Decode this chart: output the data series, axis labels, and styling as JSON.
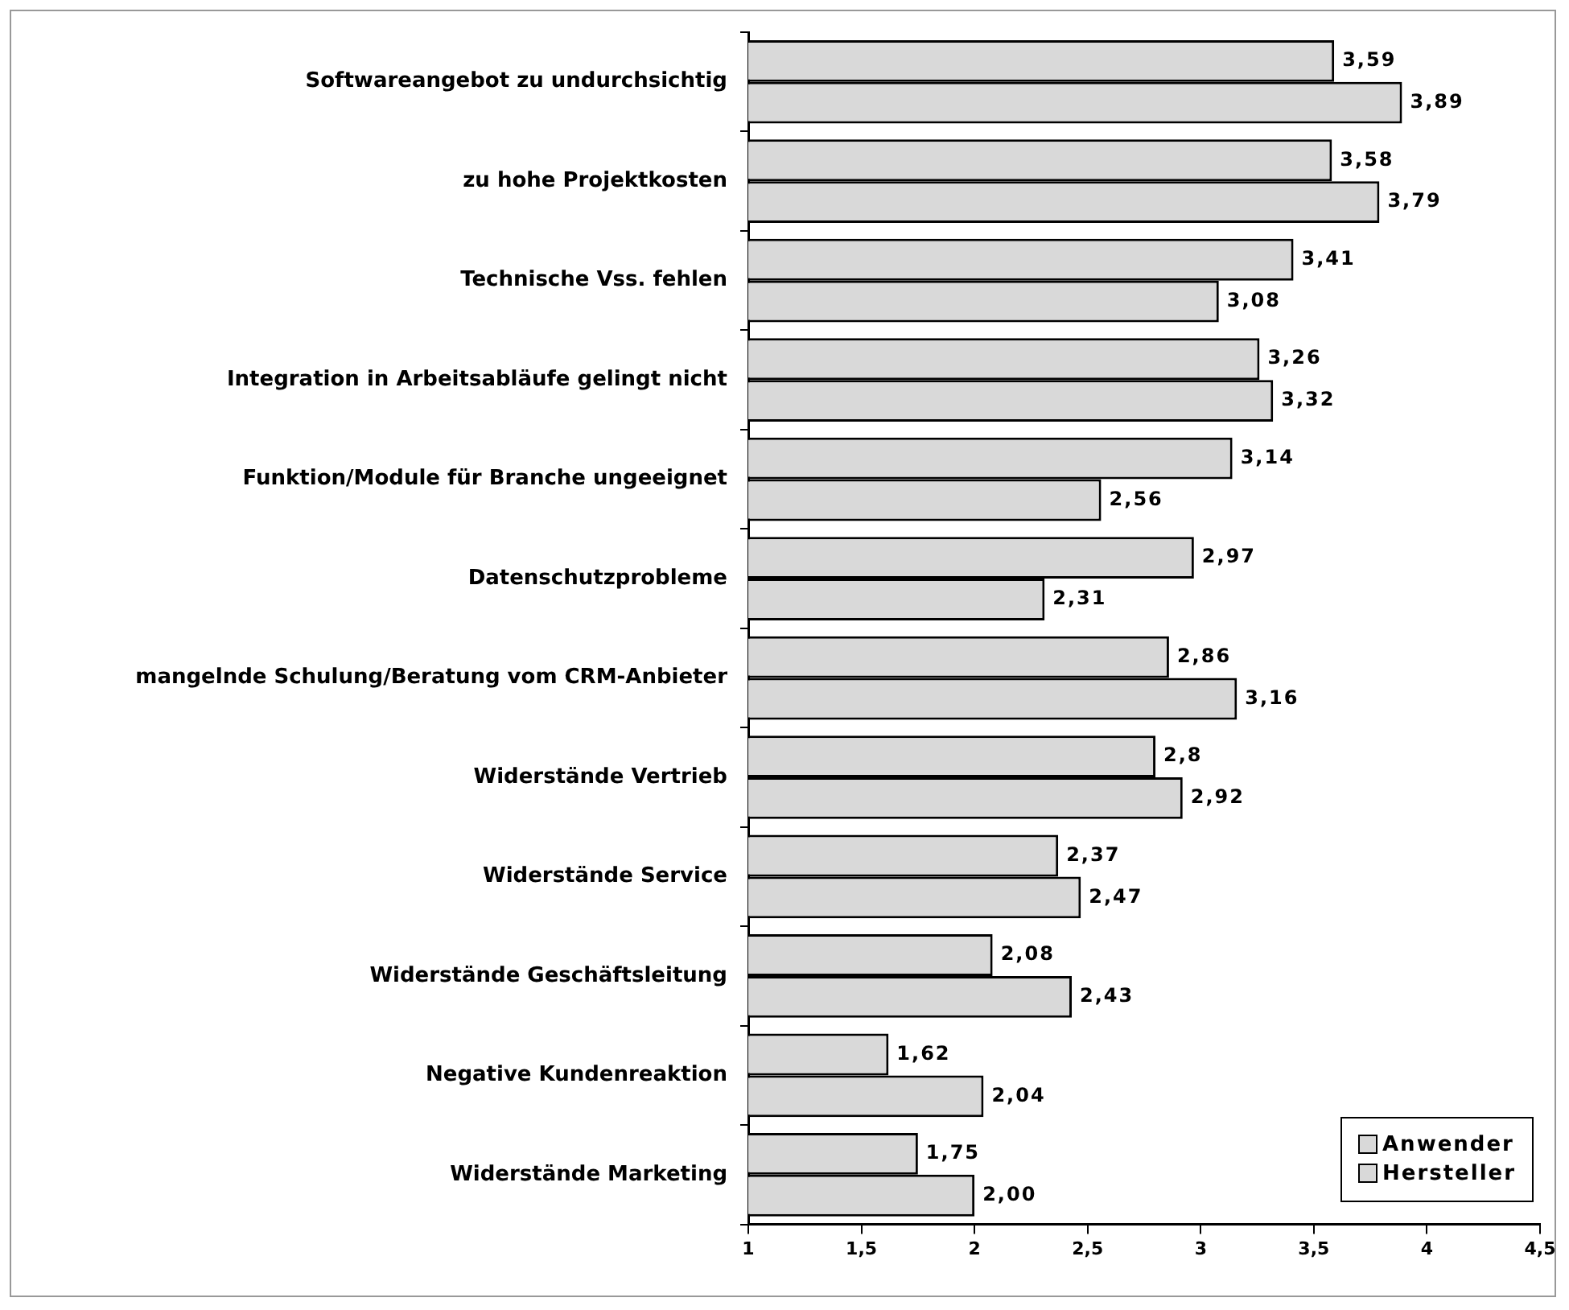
{
  "chart_data": {
    "type": "bar",
    "orientation": "horizontal",
    "categories": [
      "Softwareangebot zu undurchsichtig",
      "zu hohe Projektkosten",
      "Technische Vss. fehlen",
      "Integration in Arbeitsabläufe gelingt nicht",
      "Funktion/Module für Branche ungeeignet",
      "Datenschutzprobleme",
      "mangelnde Schulung/Beratung vom CRM-Anbieter",
      "Widerstände Vertrieb",
      "Widerstände Service",
      "Widerstände Geschäftsleitung",
      "Negative Kundenreaktion",
      "Widerstände Marketing"
    ],
    "series": [
      {
        "name": "Anwender",
        "color": "#d9d9d9",
        "values": [
          3.59,
          3.58,
          3.41,
          3.26,
          3.14,
          2.97,
          2.86,
          2.8,
          2.37,
          2.08,
          1.62,
          1.75
        ],
        "value_labels": [
          "3,59",
          "3,58",
          "3,41",
          "3,26",
          "3,14",
          "2,97",
          "2,86",
          "2,8",
          "2,37",
          "2,08",
          "1,62",
          "1,75"
        ]
      },
      {
        "name": "Hersteller",
        "color": "#d9d9d9",
        "values": [
          3.89,
          3.79,
          3.08,
          3.32,
          2.56,
          2.31,
          3.16,
          2.92,
          2.47,
          2.43,
          2.04,
          2.0
        ],
        "value_labels": [
          "3,89",
          "3,79",
          "3,08",
          "3,32",
          "2,56",
          "2,31",
          "3,16",
          "2,92",
          "2,47",
          "2,43",
          "2,04",
          "2,00"
        ]
      }
    ],
    "xlim": [
      1,
      4.5
    ],
    "xticks": [
      1,
      {
        "value": 1.5,
        "label": "1,5"
      },
      2,
      {
        "value": 2.5,
        "label": "2,5"
      },
      3,
      {
        "value": 3.5,
        "label": "3,5"
      },
      4,
      {
        "value": 4.5,
        "label": "4,5"
      }
    ],
    "grid": false,
    "legend": "bottom right"
  }
}
